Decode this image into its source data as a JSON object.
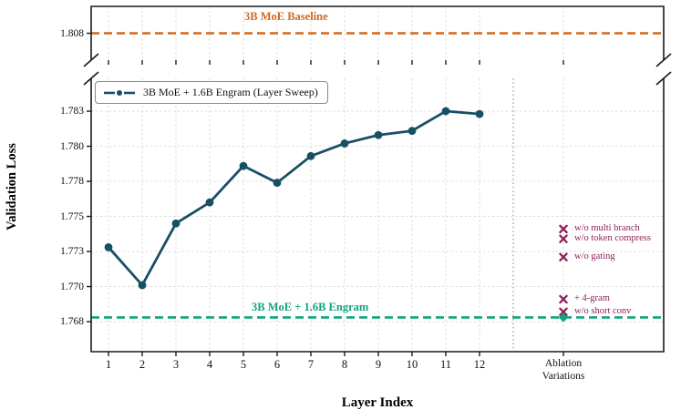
{
  "figure": {
    "ylabel": "Validation Loss",
    "xlabel": "Layer Index",
    "colors": {
      "line": "#184f63",
      "baseline_top": "#d2691e",
      "baseline_bottom": "#0fa57c",
      "ablation": "#8e2158",
      "grid": "#d9d9d9",
      "separator": "#9a9a9a",
      "spine": "#1a1a1a"
    }
  },
  "chart_data": {
    "type": "line",
    "title": "",
    "xlabel": "Layer Index",
    "ylabel": "Validation Loss",
    "grid": true,
    "legend_position": "upper left",
    "x_tick_labels": [
      "1",
      "2",
      "3",
      "4",
      "5",
      "6",
      "7",
      "8",
      "9",
      "10",
      "11",
      "12"
    ],
    "ablation_tick_label": [
      "Ablation",
      "Variations"
    ],
    "series": [
      {
        "name": "3B MoE + 1.6B Engram (Layer Sweep)",
        "x": [
          1,
          2,
          3,
          4,
          5,
          6,
          7,
          8,
          9,
          10,
          11,
          12
        ],
        "values": [
          1.7733,
          1.7706,
          1.775,
          1.7765,
          1.7791,
          1.7779,
          1.7798,
          1.7807,
          1.7813,
          1.7816,
          1.783,
          1.7828
        ]
      }
    ],
    "baselines": [
      {
        "name": "3B MoE Baseline",
        "value": 1.808,
        "panel": "top"
      },
      {
        "name": "3B MoE + 1.6B Engram",
        "value": 1.7683,
        "panel": "bottom"
      }
    ],
    "ablation_points": [
      {
        "label": "w/o multi branch",
        "value": 1.7746
      },
      {
        "label": "w/o token compress",
        "value": 1.7739
      },
      {
        "label": "w/o gating",
        "value": 1.7726
      },
      {
        "label": "+ 4-gram",
        "value": 1.7696
      },
      {
        "label": "w/o short conv",
        "value": 1.7687
      }
    ],
    "ablation_diamond": {
      "value": 1.7683
    },
    "top_panel": {
      "ylim": [
        1.8055,
        1.8105
      ],
      "yticks": [
        {
          "label": "1.808",
          "value": 1.808
        }
      ]
    },
    "bottom_panel": {
      "ylim": [
        1.76586,
        1.78534
      ],
      "yticks": [
        {
          "label": "1.783",
          "value": 1.783
        },
        {
          "label": "1.780",
          "value": 1.7805
        },
        {
          "label": "1.778",
          "value": 1.778
        },
        {
          "label": "1.775",
          "value": 1.7755
        },
        {
          "label": "1.773",
          "value": 1.773
        },
        {
          "label": "1.770",
          "value": 1.7705
        },
        {
          "label": "1.768",
          "value": 1.768
        }
      ]
    }
  }
}
